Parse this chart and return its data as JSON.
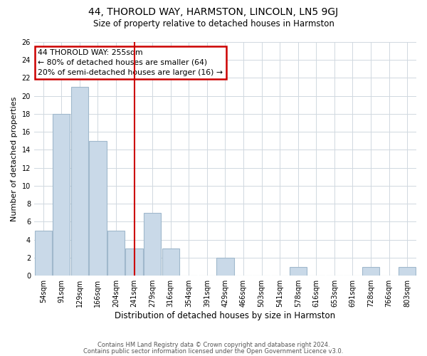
{
  "title": "44, THOROLD WAY, HARMSTON, LINCOLN, LN5 9GJ",
  "subtitle": "Size of property relative to detached houses in Harmston",
  "xlabel": "Distribution of detached houses by size in Harmston",
  "ylabel": "Number of detached properties",
  "bar_labels": [
    "54sqm",
    "91sqm",
    "129sqm",
    "166sqm",
    "204sqm",
    "241sqm",
    "279sqm",
    "316sqm",
    "354sqm",
    "391sqm",
    "429sqm",
    "466sqm",
    "503sqm",
    "541sqm",
    "578sqm",
    "616sqm",
    "653sqm",
    "691sqm",
    "728sqm",
    "766sqm",
    "803sqm"
  ],
  "bar_values": [
    5,
    18,
    21,
    15,
    5,
    3,
    7,
    3,
    0,
    0,
    2,
    0,
    0,
    0,
    1,
    0,
    0,
    0,
    1,
    0,
    1
  ],
  "bar_color": "#c9d9e8",
  "bar_edgecolor": "#a0b8cc",
  "vline_color": "#cc0000",
  "annotation_title": "44 THOROLD WAY: 255sqm",
  "annotation_line1": "← 80% of detached houses are smaller (64)",
  "annotation_line2": "20% of semi-detached houses are larger (16) →",
  "annotation_box_edgecolor": "#cc0000",
  "ylim": [
    0,
    26
  ],
  "yticks": [
    0,
    2,
    4,
    6,
    8,
    10,
    12,
    14,
    16,
    18,
    20,
    22,
    24,
    26
  ],
  "footer1": "Contains HM Land Registry data © Crown copyright and database right 2024.",
  "footer2": "Contains public sector information licensed under the Open Government Licence v3.0.",
  "bg_color": "#ffffff",
  "grid_color": "#d0d8e0"
}
